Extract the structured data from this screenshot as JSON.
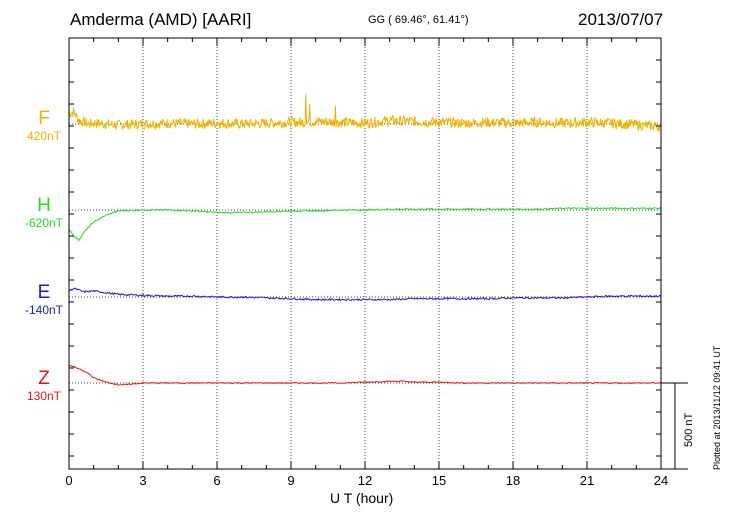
{
  "header": {
    "station": "Amderma (AMD)  [AARI]",
    "coords": "GG ( 69.46°,  61.41°)",
    "date": "2013/07/07"
  },
  "plotted_note": "Plotted at 2013/11/12 09:41 UT",
  "scale_label": "500 nT",
  "chart_data": {
    "type": "line",
    "title": "Amderma (AMD)  [AARI]",
    "xlabel": "U T (hour)",
    "ylabel": "",
    "xlim": [
      0,
      24
    ],
    "x_ticks": [
      "0",
      "3",
      "6",
      "9",
      "12",
      "15",
      "18",
      "21",
      "24"
    ],
    "grid": "vertical dotted lines every 3 h; dotted baselines per component",
    "scale_bar_nT": 500,
    "series": [
      {
        "name": "F",
        "baseline_label": "420nT",
        "color": "#f0b400",
        "x": [
          0,
          0.2,
          0.4,
          0.6,
          0.8,
          1,
          1.5,
          2,
          3,
          4,
          5,
          6,
          7,
          8,
          9,
          9.6,
          10,
          11,
          12,
          13,
          14,
          15,
          16,
          17,
          18,
          19,
          20,
          21,
          22,
          23,
          24
        ],
        "y": [
          60,
          70,
          20,
          10,
          0,
          5,
          0,
          -5,
          0,
          5,
          0,
          5,
          0,
          5,
          10,
          10,
          15,
          10,
          5,
          20,
          15,
          10,
          5,
          10,
          5,
          10,
          5,
          10,
          5,
          -5,
          -15
        ],
        "noise_nT": 30,
        "spikes": [
          {
            "x": 9.6,
            "y": 175
          },
          {
            "x": 9.75,
            "y": 115
          },
          {
            "x": 10.8,
            "y": 105
          }
        ]
      },
      {
        "name": "H",
        "baseline_label": "-620nT",
        "color": "#22dd22",
        "x": [
          0,
          0.2,
          0.4,
          0.6,
          1,
          1.5,
          2,
          3,
          4,
          5,
          6,
          7,
          8,
          9,
          10,
          11,
          12,
          13,
          14,
          15,
          16,
          17,
          18,
          19,
          20,
          21,
          22,
          23,
          24
        ],
        "y": [
          -110,
          -150,
          -175,
          -130,
          -70,
          -30,
          -5,
          0,
          0,
          -5,
          -15,
          -15,
          -10,
          -5,
          -5,
          0,
          0,
          5,
          5,
          5,
          5,
          5,
          5,
          5,
          10,
          10,
          10,
          10,
          10
        ],
        "noise_nT": 4
      },
      {
        "name": "E",
        "baseline_label": "-140nT",
        "color": "#1a1acc",
        "x": [
          0,
          0.2,
          0.4,
          0.6,
          1,
          1.5,
          2,
          3,
          4,
          5,
          6,
          7,
          8,
          9,
          10,
          11,
          12,
          13,
          14,
          15,
          16,
          17,
          18,
          19,
          20,
          21,
          22,
          23,
          24
        ],
        "y": [
          35,
          50,
          40,
          30,
          35,
          25,
          15,
          10,
          5,
          5,
          0,
          0,
          -5,
          -10,
          -15,
          -15,
          -15,
          -15,
          -10,
          -10,
          -10,
          -10,
          -5,
          -5,
          -5,
          0,
          5,
          5,
          5
        ],
        "noise_nT": 5
      },
      {
        "name": "Z",
        "baseline_label": "130nT",
        "color": "#e01818",
        "x": [
          0,
          0.2,
          0.5,
          0.8,
          1,
          1.5,
          2,
          2.3,
          3,
          4,
          5,
          6,
          7,
          8,
          9,
          10,
          11,
          12,
          13,
          13.5,
          14,
          15,
          16,
          17,
          18,
          19,
          20,
          21,
          22,
          23,
          24
        ],
        "y": [
          100,
          95,
          75,
          55,
          30,
          5,
          -10,
          -10,
          0,
          0,
          0,
          0,
          0,
          0,
          0,
          0,
          0,
          5,
          10,
          10,
          5,
          5,
          0,
          0,
          0,
          0,
          0,
          0,
          0,
          0,
          0
        ],
        "noise_nT": 3
      }
    ]
  }
}
